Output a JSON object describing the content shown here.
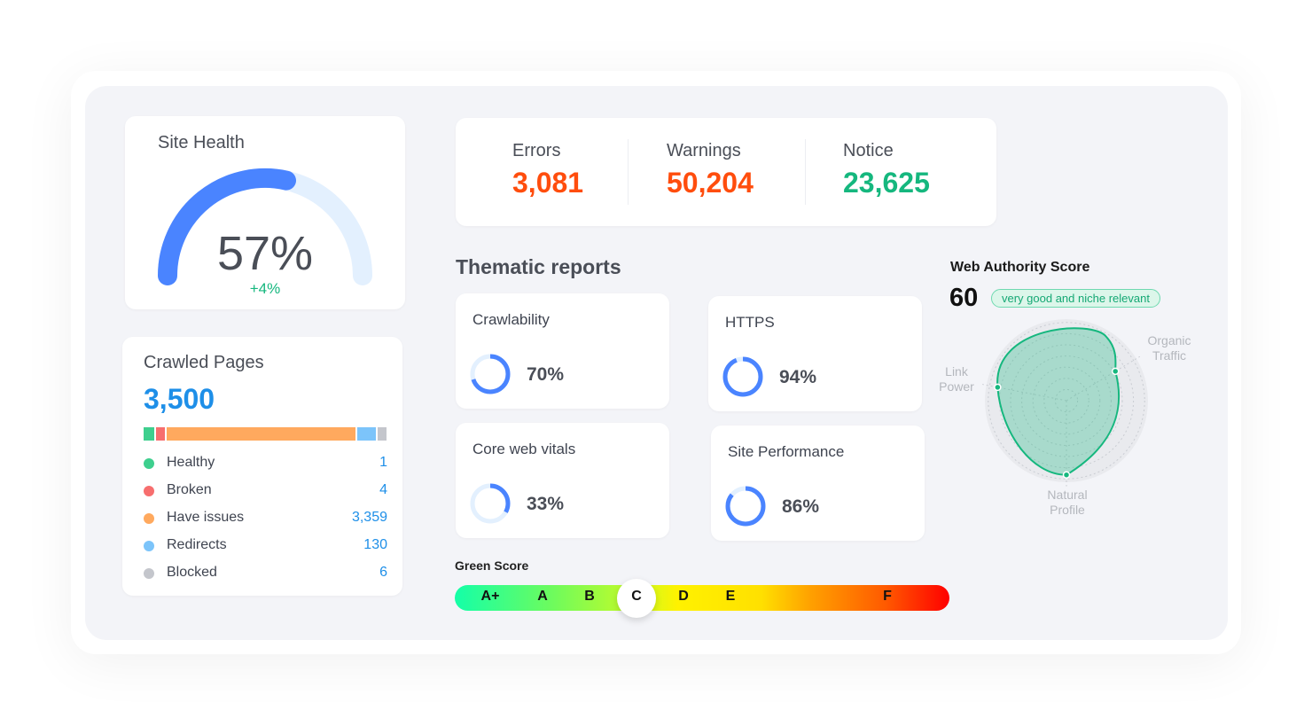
{
  "site_health": {
    "title": "Site Health",
    "value": "57%",
    "percent": 57,
    "change": "+4%"
  },
  "crawled": {
    "title": "Crawled Pages",
    "total": "3,500",
    "items": [
      {
        "label": "Healthy",
        "value": "1",
        "color": "#3ecf8e"
      },
      {
        "label": "Broken",
        "value": "4",
        "color": "#f76e6e"
      },
      {
        "label": "Have issues",
        "value": "3,359",
        "color": "#ffa95e"
      },
      {
        "label": "Redirects",
        "value": "130",
        "color": "#7cc4fa"
      },
      {
        "label": "Blocked",
        "value": "6",
        "color": "#c4c6cc"
      }
    ]
  },
  "issues": [
    {
      "label": "Errors",
      "value": "3,081",
      "color": "#ff4d0d"
    },
    {
      "label": "Warnings",
      "value": "50,204",
      "color": "#ff4d0d"
    },
    {
      "label": "Notice",
      "value": "23,625",
      "color": "#15b77e"
    }
  ],
  "thematic": {
    "title": "Thematic reports",
    "reports": [
      {
        "label": "Crawlability",
        "value": "70%",
        "percent": 70
      },
      {
        "label": "HTTPS",
        "value": "94%",
        "percent": 94
      },
      {
        "label": "Core web vitals",
        "value": "33%",
        "percent": 33
      },
      {
        "label": "Site Performance",
        "value": "86%",
        "percent": 86
      }
    ]
  },
  "authority": {
    "title": "Web Authority Score",
    "score": "60",
    "badge": "very good and niche relevant",
    "axes": [
      {
        "label": "Organic Traffic",
        "line1": "Organic",
        "line2": "Traffic",
        "value": 0.7
      },
      {
        "label": "Natural Profile",
        "line1": "Natural",
        "line2": "Profile",
        "value": 0.91
      },
      {
        "label": "Link Power",
        "line1": "Link",
        "line2": "Power",
        "value": 0.86
      }
    ],
    "color": "#15b77e"
  },
  "green_score": {
    "title": "Green Score",
    "grades": [
      "A+",
      "A",
      "B",
      "C",
      "D",
      "E",
      "F"
    ],
    "selected": "C"
  },
  "colors": {
    "accent": "#4a84ff",
    "track": "#e3f0fe"
  }
}
